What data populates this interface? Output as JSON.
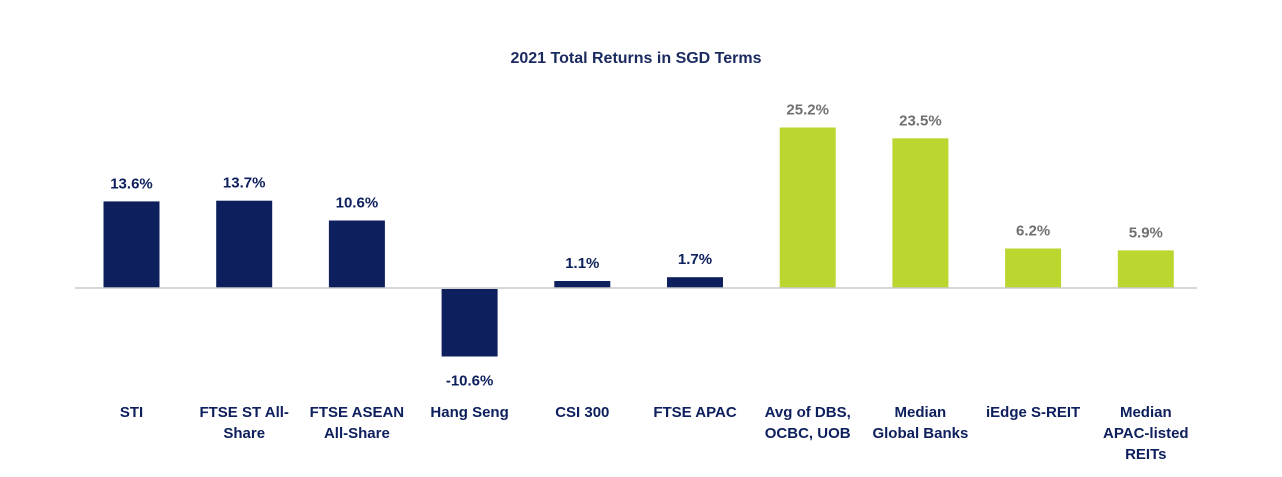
{
  "chart_data": {
    "type": "bar",
    "title": "2021 Total Returns in SGD Terms",
    "xlabel": "",
    "ylabel": "",
    "ylim": [
      -11,
      26
    ],
    "grid": false,
    "legend": "none",
    "categories": [
      [
        "STI"
      ],
      [
        "FTSE ST All-",
        "Share"
      ],
      [
        "FTSE ASEAN",
        "All-Share"
      ],
      [
        "Hang Seng"
      ],
      [
        "CSI 300"
      ],
      [
        "FTSE APAC"
      ],
      [
        "Avg of DBS,",
        "OCBC, UOB"
      ],
      [
        "Median",
        "Global Banks"
      ],
      [
        "iEdge S-REIT"
      ],
      [
        "Median",
        "APAC-listed",
        "REITs"
      ]
    ],
    "values": [
      13.6,
      13.7,
      10.6,
      -10.6,
      1.1,
      1.7,
      25.2,
      23.5,
      6.2,
      5.9
    ],
    "value_labels": [
      "13.6%",
      "13.7%",
      "10.6%",
      "-10.6%",
      "1.1%",
      "1.7%",
      "25.2%",
      "23.5%",
      "6.2%",
      "5.9%"
    ],
    "bar_groups": [
      "index",
      "index",
      "index",
      "index",
      "index",
      "index",
      "sector",
      "sector",
      "sector",
      "sector"
    ]
  },
  "colors": {
    "index_bar": "#0d1f5c",
    "sector_bar": "#bcd630",
    "index_label": "#0d1f5c",
    "sector_label": "#707070",
    "title": "#1a2a5e",
    "axis": "#c8c8c8"
  }
}
